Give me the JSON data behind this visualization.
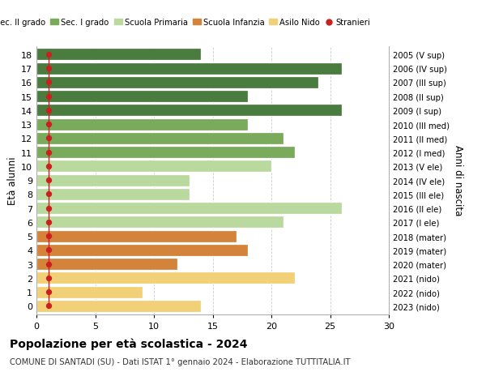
{
  "ages": [
    18,
    17,
    16,
    15,
    14,
    13,
    12,
    11,
    10,
    9,
    8,
    7,
    6,
    5,
    4,
    3,
    2,
    1,
    0
  ],
  "values": [
    14,
    26,
    24,
    18,
    26,
    18,
    21,
    22,
    20,
    13,
    13,
    26,
    21,
    17,
    18,
    12,
    22,
    9,
    14
  ],
  "stranieri_x": [
    1,
    1,
    1,
    1,
    1,
    1,
    1,
    1,
    1,
    1,
    1,
    1,
    1,
    1,
    1,
    1,
    1,
    1,
    1
  ],
  "right_labels": [
    "2005 (V sup)",
    "2006 (IV sup)",
    "2007 (III sup)",
    "2008 (II sup)",
    "2009 (I sup)",
    "2010 (III med)",
    "2011 (II med)",
    "2012 (I med)",
    "2013 (V ele)",
    "2014 (IV ele)",
    "2015 (III ele)",
    "2016 (II ele)",
    "2017 (I ele)",
    "2018 (mater)",
    "2019 (mater)",
    "2020 (mater)",
    "2021 (nido)",
    "2022 (nido)",
    "2023 (nido)"
  ],
  "bar_colors": [
    "#4a7c40",
    "#4a7c40",
    "#4a7c40",
    "#4a7c40",
    "#4a7c40",
    "#7aaa5c",
    "#7aaa5c",
    "#7aaa5c",
    "#bad99e",
    "#bad99e",
    "#bad99e",
    "#bad99e",
    "#bad99e",
    "#d4833a",
    "#d4833a",
    "#d4833a",
    "#f2d078",
    "#f2d078",
    "#f2d078"
  ],
  "stranieri_color": "#cc2020",
  "legend_labels": [
    "Sec. II grado",
    "Sec. I grado",
    "Scuola Primaria",
    "Scuola Infanzia",
    "Asilo Nido",
    "Stranieri"
  ],
  "legend_colors": [
    "#4a7c40",
    "#7aaa5c",
    "#bad99e",
    "#d4833a",
    "#f2d078",
    "#cc2020"
  ],
  "ylabel": "Età alunni",
  "right_ylabel": "Anni di nascita",
  "title": "Popolazione per età scolastica - 2024",
  "subtitle": "COMUNE DI SANTADI (SU) - Dati ISTAT 1° gennaio 2024 - Elaborazione TUTTITALIA.IT",
  "xlim": [
    0,
    30
  ],
  "xticks": [
    0,
    5,
    10,
    15,
    20,
    25,
    30
  ],
  "background_color": "#ffffff",
  "grid_color": "#cccccc"
}
